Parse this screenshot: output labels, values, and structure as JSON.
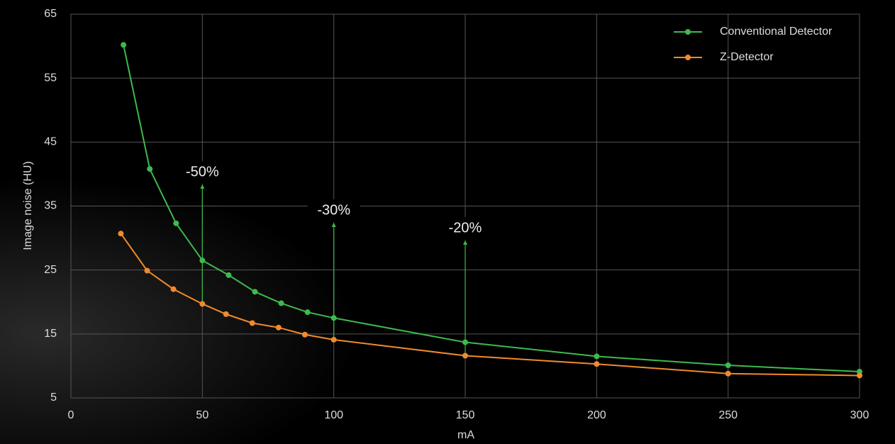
{
  "chart_data": {
    "type": "line",
    "x_label": "mA",
    "y_label": "Image noise (HU)",
    "xlim": [
      0,
      300
    ],
    "xticks": [
      0,
      50,
      100,
      150,
      200,
      250,
      300
    ],
    "ylim": [
      5,
      65
    ],
    "yticks": [
      5,
      15,
      25,
      35,
      45,
      55,
      65
    ],
    "grid": true,
    "legend": "top-right",
    "series": [
      {
        "name": "Conventional Detector",
        "color": "#3dba4e",
        "x": [
          20,
          30,
          40,
          50,
          60,
          70,
          80,
          90,
          100,
          150,
          200,
          250,
          300
        ],
        "values": [
          60.2,
          40.8,
          32.3,
          26.5,
          24.2,
          21.6,
          19.8,
          18.4,
          17.5,
          13.7,
          11.5,
          10.1,
          9.1
        ]
      },
      {
        "name": "Z-Detector",
        "color": "#f08a2c",
        "x": [
          19,
          29,
          39,
          50,
          59,
          69,
          79,
          89,
          100,
          150,
          200,
          250,
          300
        ],
        "values": [
          30.7,
          24.9,
          22.0,
          19.7,
          18.1,
          16.7,
          16.0,
          14.9,
          14.1,
          11.6,
          10.3,
          8.8,
          8.5
        ]
      }
    ],
    "annotations": [
      {
        "text": "-50%",
        "x": 50
      },
      {
        "text": "-30%",
        "x": 100
      },
      {
        "text": "-20%",
        "x": 150
      }
    ]
  }
}
